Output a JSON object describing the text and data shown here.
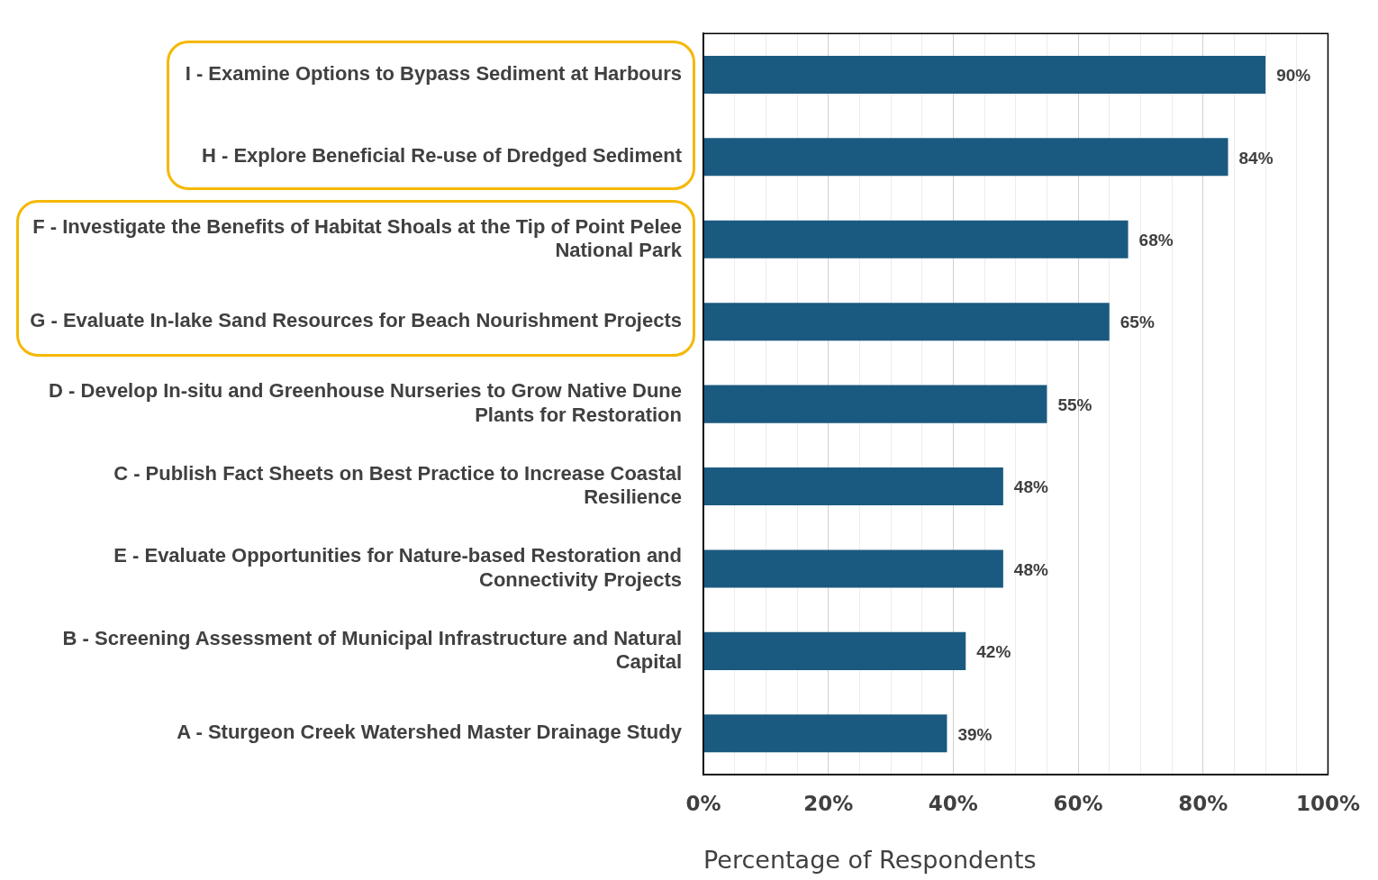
{
  "chart_data": {
    "type": "bar",
    "orientation": "horizontal",
    "xlabel": "Percentage of Respondents",
    "categories": [
      "I - Examine Options to Bypass Sediment at Harbours",
      "H - Explore Beneficial Re-use of Dredged Sediment",
      "F - Investigate the Benefits of Habitat Shoals at the Tip of Point Pelee National Park",
      "G - Evaluate In-lake Sand Resources for Beach Nourishment Projects",
      "D - Develop In-situ and Greenhouse Nurseries to Grow Native Dune Plants for Restoration",
      "C - Publish Fact Sheets on Best Practice to Increase Coastal Resilience",
      "E - Evaluate Opportunities for Nature-based Restoration and Connectivity Projects",
      "B - Screening Assessment of Municipal Infrastructure and Natural Capital",
      "A - Sturgeon Creek Watershed Master Drainage Study"
    ],
    "values": [
      90,
      84,
      68,
      65,
      55,
      48,
      48,
      42,
      39
    ],
    "value_labels": [
      "90%",
      "84%",
      "68%",
      "65%",
      "55%",
      "48%",
      "48%",
      "42%",
      "39%"
    ],
    "color": "#1b5a80",
    "xlim": [
      0,
      100
    ],
    "xticks": [
      {
        "value": 0,
        "label": "0%"
      },
      {
        "value": 5,
        "label": null
      },
      {
        "value": 10,
        "label": null
      },
      {
        "value": 15,
        "label": null
      },
      {
        "value": 20,
        "label": "20%"
      },
      {
        "value": 25,
        "label": null
      },
      {
        "value": 30,
        "label": null
      },
      {
        "value": 35,
        "label": null
      },
      {
        "value": 40,
        "label": "40%"
      },
      {
        "value": 45,
        "label": null
      },
      {
        "value": 50,
        "label": null
      },
      {
        "value": 55,
        "label": null
      },
      {
        "value": 60,
        "label": "60%"
      },
      {
        "value": 65,
        "label": null
      },
      {
        "value": 70,
        "label": null
      },
      {
        "value": 75,
        "label": null
      },
      {
        "value": 80,
        "label": "80%"
      },
      {
        "value": 85,
        "label": null
      },
      {
        "value": 90,
        "label": null
      },
      {
        "value": 95,
        "label": null
      },
      {
        "value": 100,
        "label": "100%"
      }
    ],
    "grid": "x",
    "legend": false
  }
}
